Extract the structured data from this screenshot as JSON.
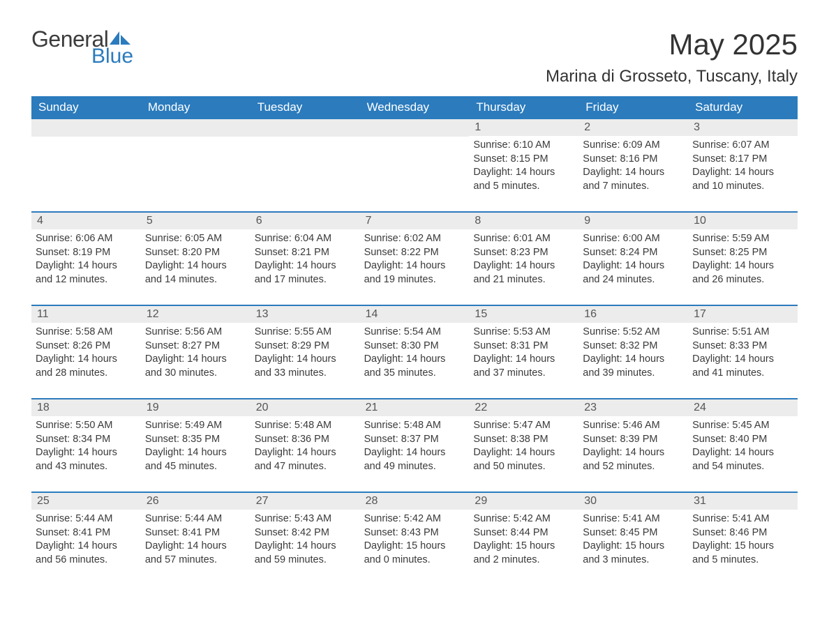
{
  "brand": {
    "general": "General",
    "blue": "Blue"
  },
  "title": "May 2025",
  "location": "Marina di Grosseto, Tuscany, Italy",
  "colors": {
    "header_bg": "#2b7bbd",
    "header_text": "#ffffff",
    "daynum_bg": "#ececec",
    "text": "#3a3a3a",
    "divider": "#2b7bbd"
  },
  "weekdays": [
    "Sunday",
    "Monday",
    "Tuesday",
    "Wednesday",
    "Thursday",
    "Friday",
    "Saturday"
  ],
  "weeks": [
    [
      null,
      null,
      null,
      null,
      {
        "n": "1",
        "sr": "6:10 AM",
        "ss": "8:15 PM",
        "dl": "14 hours and 5 minutes."
      },
      {
        "n": "2",
        "sr": "6:09 AM",
        "ss": "8:16 PM",
        "dl": "14 hours and 7 minutes."
      },
      {
        "n": "3",
        "sr": "6:07 AM",
        "ss": "8:17 PM",
        "dl": "14 hours and 10 minutes."
      }
    ],
    [
      {
        "n": "4",
        "sr": "6:06 AM",
        "ss": "8:19 PM",
        "dl": "14 hours and 12 minutes."
      },
      {
        "n": "5",
        "sr": "6:05 AM",
        "ss": "8:20 PM",
        "dl": "14 hours and 14 minutes."
      },
      {
        "n": "6",
        "sr": "6:04 AM",
        "ss": "8:21 PM",
        "dl": "14 hours and 17 minutes."
      },
      {
        "n": "7",
        "sr": "6:02 AM",
        "ss": "8:22 PM",
        "dl": "14 hours and 19 minutes."
      },
      {
        "n": "8",
        "sr": "6:01 AM",
        "ss": "8:23 PM",
        "dl": "14 hours and 21 minutes."
      },
      {
        "n": "9",
        "sr": "6:00 AM",
        "ss": "8:24 PM",
        "dl": "14 hours and 24 minutes."
      },
      {
        "n": "10",
        "sr": "5:59 AM",
        "ss": "8:25 PM",
        "dl": "14 hours and 26 minutes."
      }
    ],
    [
      {
        "n": "11",
        "sr": "5:58 AM",
        "ss": "8:26 PM",
        "dl": "14 hours and 28 minutes."
      },
      {
        "n": "12",
        "sr": "5:56 AM",
        "ss": "8:27 PM",
        "dl": "14 hours and 30 minutes."
      },
      {
        "n": "13",
        "sr": "5:55 AM",
        "ss": "8:29 PM",
        "dl": "14 hours and 33 minutes."
      },
      {
        "n": "14",
        "sr": "5:54 AM",
        "ss": "8:30 PM",
        "dl": "14 hours and 35 minutes."
      },
      {
        "n": "15",
        "sr": "5:53 AM",
        "ss": "8:31 PM",
        "dl": "14 hours and 37 minutes."
      },
      {
        "n": "16",
        "sr": "5:52 AM",
        "ss": "8:32 PM",
        "dl": "14 hours and 39 minutes."
      },
      {
        "n": "17",
        "sr": "5:51 AM",
        "ss": "8:33 PM",
        "dl": "14 hours and 41 minutes."
      }
    ],
    [
      {
        "n": "18",
        "sr": "5:50 AM",
        "ss": "8:34 PM",
        "dl": "14 hours and 43 minutes."
      },
      {
        "n": "19",
        "sr": "5:49 AM",
        "ss": "8:35 PM",
        "dl": "14 hours and 45 minutes."
      },
      {
        "n": "20",
        "sr": "5:48 AM",
        "ss": "8:36 PM",
        "dl": "14 hours and 47 minutes."
      },
      {
        "n": "21",
        "sr": "5:48 AM",
        "ss": "8:37 PM",
        "dl": "14 hours and 49 minutes."
      },
      {
        "n": "22",
        "sr": "5:47 AM",
        "ss": "8:38 PM",
        "dl": "14 hours and 50 minutes."
      },
      {
        "n": "23",
        "sr": "5:46 AM",
        "ss": "8:39 PM",
        "dl": "14 hours and 52 minutes."
      },
      {
        "n": "24",
        "sr": "5:45 AM",
        "ss": "8:40 PM",
        "dl": "14 hours and 54 minutes."
      }
    ],
    [
      {
        "n": "25",
        "sr": "5:44 AM",
        "ss": "8:41 PM",
        "dl": "14 hours and 56 minutes."
      },
      {
        "n": "26",
        "sr": "5:44 AM",
        "ss": "8:41 PM",
        "dl": "14 hours and 57 minutes."
      },
      {
        "n": "27",
        "sr": "5:43 AM",
        "ss": "8:42 PM",
        "dl": "14 hours and 59 minutes."
      },
      {
        "n": "28",
        "sr": "5:42 AM",
        "ss": "8:43 PM",
        "dl": "15 hours and 0 minutes."
      },
      {
        "n": "29",
        "sr": "5:42 AM",
        "ss": "8:44 PM",
        "dl": "15 hours and 2 minutes."
      },
      {
        "n": "30",
        "sr": "5:41 AM",
        "ss": "8:45 PM",
        "dl": "15 hours and 3 minutes."
      },
      {
        "n": "31",
        "sr": "5:41 AM",
        "ss": "8:46 PM",
        "dl": "15 hours and 5 minutes."
      }
    ]
  ],
  "labels": {
    "sunrise": "Sunrise: ",
    "sunset": "Sunset: ",
    "daylight": "Daylight: "
  }
}
